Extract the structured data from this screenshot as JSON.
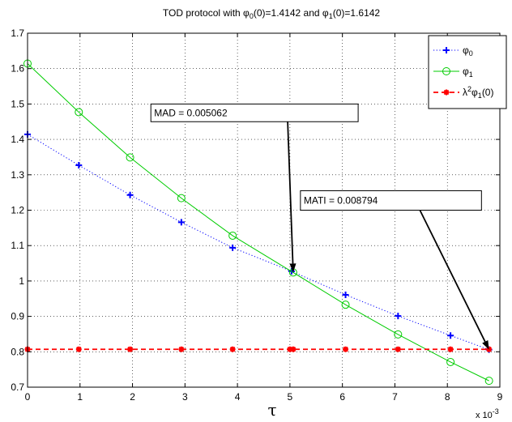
{
  "chart_data": {
    "type": "line",
    "title": {
      "prefix": "TOD protocol with ",
      "sym0": "φ",
      "sub0": "0",
      "mid0": "(0)=1.4142 and ",
      "sym1": "φ",
      "sub1": "1",
      "mid1": "(0)=1.6142"
    },
    "xlabel": "τ",
    "x_exponent": {
      "base": "x 10",
      "power": "-3"
    },
    "xlim": [
      0,
      9
    ],
    "ylim": [
      0.7,
      1.7
    ],
    "x_ticks": [
      0,
      1,
      2,
      3,
      4,
      5,
      6,
      7,
      8,
      9
    ],
    "x_tick_labels": [
      "0",
      "1",
      "2",
      "3",
      "4",
      "5",
      "6",
      "7",
      "8",
      "9"
    ],
    "y_ticks": [
      0.7,
      0.8,
      0.9,
      1.0,
      1.1,
      1.2,
      1.3,
      1.4,
      1.5,
      1.6,
      1.7
    ],
    "y_tick_labels": [
      "0.7",
      "0.8",
      "0.9",
      "1",
      "1.1",
      "1.2",
      "1.3",
      "1.4",
      "1.5",
      "1.6",
      "1.7"
    ],
    "grid": true,
    "legend_position": "top-right",
    "series": [
      {
        "key": "phi0",
        "legend": {
          "sym": "φ",
          "sub": "0",
          "sup": "",
          "tail": ""
        },
        "color": "#0000ff",
        "line_style": "dotted",
        "marker": "plus",
        "x": [
          0,
          0.977,
          1.954,
          2.931,
          3.908,
          5.031,
          6.06,
          7.06,
          8.06,
          8.794
        ],
        "y": [
          1.4142,
          1.327,
          1.243,
          1.166,
          1.094,
          1.0275,
          0.961,
          0.901,
          0.846,
          0.806
        ]
      },
      {
        "key": "phi1",
        "legend": {
          "sym": "φ",
          "sub": "1",
          "sup": "",
          "tail": ""
        },
        "color": "#00cc00",
        "line_style": "solid",
        "marker": "circle",
        "x": [
          0,
          0.977,
          1.954,
          2.931,
          3.908,
          5.062,
          6.06,
          7.06,
          8.06,
          8.794
        ],
        "y": [
          1.6142,
          1.477,
          1.349,
          1.234,
          1.128,
          1.024,
          0.933,
          0.849,
          0.771,
          0.718
        ]
      },
      {
        "key": "lambda2phi1",
        "legend": {
          "sym": "λ",
          "sup": "2",
          "sym2": "φ",
          "sub": "1",
          "tail": "(0)"
        },
        "color": "#ff0000",
        "line_style": "dashed",
        "marker": "star",
        "x": [
          0,
          0.977,
          1.954,
          2.931,
          3.908,
          5.0,
          5.062,
          6.06,
          7.06,
          8.06,
          8.794
        ],
        "y": [
          0.807,
          0.807,
          0.807,
          0.807,
          0.807,
          0.807,
          0.807,
          0.807,
          0.807,
          0.807,
          0.807
        ]
      }
    ],
    "annotations": [
      {
        "key": "mad",
        "text": "MAD = 0.005062",
        "target_x": 5.062,
        "target_y": 1.024,
        "box_x": 2.35,
        "box_y": 1.5,
        "box_w": 3.95,
        "box_h": 0.05
      },
      {
        "key": "mati",
        "text": "MATI = 0.008794",
        "target_x": 8.794,
        "target_y": 0.806,
        "box_x": 5.2,
        "box_y": 1.255,
        "box_w": 3.45,
        "box_h": 0.055
      }
    ]
  }
}
